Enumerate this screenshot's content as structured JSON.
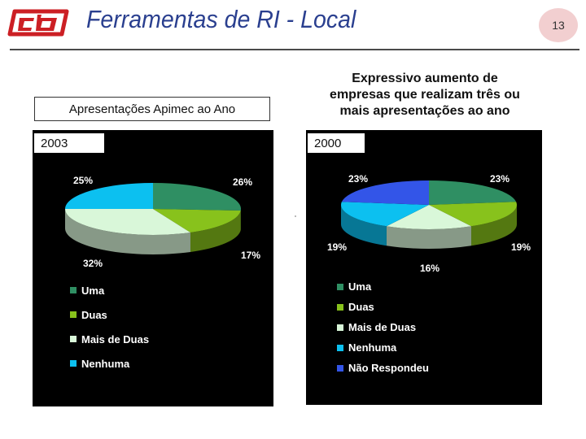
{
  "header": {
    "title": "Ferramentas de RI - Local",
    "page_number": "13",
    "logo_icon": "cb-logo-icon",
    "accent_color": "#2a3f8f",
    "logo_color": "#cc1f24"
  },
  "left": {
    "subtitle": "Apresentações Apimec ao Ano",
    "year": "2003"
  },
  "right": {
    "subtitle_lines": [
      "Expressivo aumento de",
      "empresas que realizam três ou",
      "mais apresentações ao ano"
    ],
    "year": "2000"
  },
  "chart_data": [
    {
      "type": "pie",
      "title": "Apresentações Apimec ao Ano",
      "subtitle": "2003",
      "categories": [
        "Uma",
        "Duas",
        "Mais de Duas",
        "Nenhuma"
      ],
      "values": [
        26,
        17,
        32,
        25
      ],
      "value_labels": [
        "26%",
        "17%",
        "32%",
        "25%"
      ],
      "colors": [
        "#2f8f63",
        "#88c21c",
        "#d9f7d9",
        "#0cc0f0"
      ],
      "legend_position": "bottom-left"
    },
    {
      "type": "pie",
      "title": "Expressivo aumento de empresas que realizam três ou mais apresentações ao ano",
      "subtitle": "2000",
      "categories": [
        "Uma",
        "Duas",
        "Mais de Duas",
        "Nenhuma",
        "Não Respondeu"
      ],
      "values": [
        23,
        19,
        16,
        19,
        23
      ],
      "value_labels": [
        "23%",
        "19%",
        "16%",
        "19%",
        "23%"
      ],
      "colors": [
        "#2f8f63",
        "#88c21c",
        "#d9f7d9",
        "#0cc0f0",
        "#3355e8"
      ],
      "legend_position": "bottom-left"
    }
  ]
}
